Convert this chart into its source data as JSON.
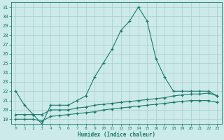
{
  "x": [
    0,
    1,
    2,
    3,
    4,
    5,
    6,
    7,
    8,
    9,
    10,
    11,
    12,
    13,
    14,
    15,
    16,
    17,
    18,
    19,
    20,
    21,
    22,
    23
  ],
  "y_line1": [
    22.0,
    20.5,
    19.5,
    18.5,
    20.5,
    20.5,
    20.5,
    21.0,
    21.5,
    23.5,
    25.0,
    26.5,
    28.5,
    29.5,
    31.0,
    29.5,
    25.5,
    23.5,
    22.0,
    22.0,
    22.0,
    22.0,
    22.0,
    21.5
  ],
  "y_line2": [
    19.5,
    19.5,
    19.5,
    19.5,
    20.0,
    20.0,
    20.0,
    20.2,
    20.3,
    20.5,
    20.6,
    20.7,
    20.8,
    20.9,
    21.0,
    21.1,
    21.2,
    21.3,
    21.5,
    21.6,
    21.7,
    21.7,
    21.8,
    21.5
  ],
  "y_line3": [
    19.0,
    19.0,
    19.0,
    18.8,
    19.3,
    19.4,
    19.5,
    19.6,
    19.7,
    19.8,
    20.0,
    20.1,
    20.2,
    20.3,
    20.4,
    20.5,
    20.6,
    20.7,
    20.8,
    20.9,
    21.0,
    21.0,
    21.0,
    20.8
  ],
  "line_color": "#1a7a6a",
  "bg_color": "#cceaea",
  "grid_color": "#aacccc",
  "xlabel": "Humidex (Indice chaleur)",
  "ylim": [
    18.5,
    31.5
  ],
  "yticks": [
    19,
    20,
    21,
    22,
    23,
    24,
    25,
    26,
    27,
    28,
    29,
    30,
    31
  ],
  "xlim": [
    -0.5,
    23.5
  ],
  "xticks": [
    0,
    1,
    2,
    3,
    4,
    5,
    6,
    7,
    8,
    9,
    10,
    11,
    12,
    13,
    14,
    15,
    16,
    17,
    18,
    19,
    20,
    21,
    22,
    23
  ]
}
